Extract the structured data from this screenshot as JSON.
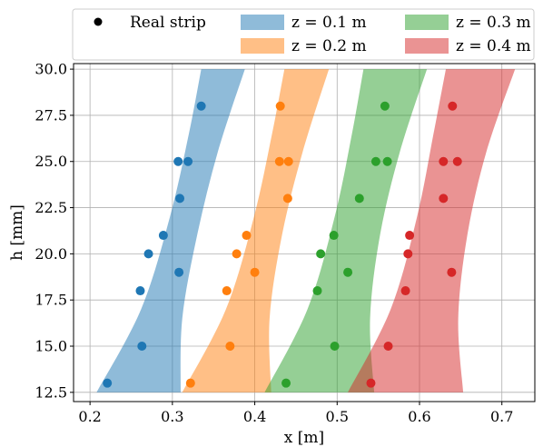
{
  "chart_data": {
    "type": "scatter",
    "title": "",
    "xlabel": "x [m]",
    "ylabel": "h [mm]",
    "xlim": [
      0.18,
      0.74
    ],
    "ylim": [
      12.0,
      30.3
    ],
    "grid": true,
    "legend_position": "top",
    "x_ticks": [
      0.2,
      0.3,
      0.4,
      0.5,
      0.6,
      0.7
    ],
    "x_tick_labels": [
      "0.2",
      "0.3",
      "0.4",
      "0.5",
      "0.6",
      "0.7"
    ],
    "y_ticks": [
      12.5,
      15.0,
      17.5,
      20.0,
      22.5,
      25.0,
      27.5,
      30.0
    ],
    "y_tick_labels": [
      "12.5",
      "15.0",
      "17.5",
      "20.0",
      "22.5",
      "25.0",
      "27.5",
      "30.0"
    ],
    "legend": {
      "marker_label": "Real strip",
      "entries": [
        "z = 0.1 m",
        "z = 0.2 m",
        "z = 0.3 m",
        "z = 0.4 m"
      ]
    },
    "bands": [
      {
        "name": "z = 0.1 m",
        "color": "#1f77b4",
        "left": [
          [
            0.208,
            12.5
          ],
          [
            0.262,
            17.0
          ],
          [
            0.297,
            22.0
          ],
          [
            0.32,
            26.5
          ],
          [
            0.335,
            30.0
          ]
        ],
        "right": [
          [
            0.31,
            12.5
          ],
          [
            0.312,
            16.5
          ],
          [
            0.33,
            21.0
          ],
          [
            0.355,
            25.5
          ],
          [
            0.388,
            30.0
          ]
        ]
      },
      {
        "name": "z = 0.2 m",
        "color": "#ff7f0e",
        "left": [
          [
            0.312,
            12.5
          ],
          [
            0.365,
            17.0
          ],
          [
            0.399,
            22.0
          ],
          [
            0.421,
            26.5
          ],
          [
            0.436,
            30.0
          ]
        ],
        "right": [
          [
            0.42,
            12.5
          ],
          [
            0.418,
            16.5
          ],
          [
            0.433,
            21.0
          ],
          [
            0.458,
            25.5
          ],
          [
            0.49,
            30.0
          ]
        ]
      },
      {
        "name": "z = 0.3 m",
        "color": "#2ca02c",
        "left": [
          [
            0.412,
            12.5
          ],
          [
            0.464,
            17.0
          ],
          [
            0.497,
            22.0
          ],
          [
            0.518,
            26.5
          ],
          [
            0.532,
            30.0
          ]
        ],
        "right": [
          [
            0.545,
            12.5
          ],
          [
            0.54,
            16.5
          ],
          [
            0.552,
            21.0
          ],
          [
            0.576,
            25.5
          ],
          [
            0.609,
            30.0
          ]
        ]
      },
      {
        "name": "z = 0.4 m",
        "color": "#d62728",
        "left": [
          [
            0.513,
            12.5
          ],
          [
            0.565,
            17.0
          ],
          [
            0.597,
            22.0
          ],
          [
            0.617,
            26.5
          ],
          [
            0.632,
            30.0
          ]
        ],
        "right": [
          [
            0.653,
            12.5
          ],
          [
            0.647,
            16.5
          ],
          [
            0.658,
            21.0
          ],
          [
            0.681,
            25.5
          ],
          [
            0.716,
            30.0
          ]
        ]
      }
    ],
    "series": [
      {
        "color": "#1f77b4",
        "points": [
          [
            0.221,
            13.0
          ],
          [
            0.263,
            15.0
          ],
          [
            0.261,
            18.0
          ],
          [
            0.308,
            19.0
          ],
          [
            0.271,
            20.0
          ],
          [
            0.289,
            21.0
          ],
          [
            0.309,
            23.0
          ],
          [
            0.307,
            25.0
          ],
          [
            0.319,
            25.0
          ],
          [
            0.335,
            28.0
          ]
        ]
      },
      {
        "color": "#ff7f0e",
        "points": [
          [
            0.322,
            13.0
          ],
          [
            0.37,
            15.0
          ],
          [
            0.366,
            18.0
          ],
          [
            0.4,
            19.0
          ],
          [
            0.378,
            20.0
          ],
          [
            0.39,
            21.0
          ],
          [
            0.44,
            23.0
          ],
          [
            0.43,
            25.0
          ],
          [
            0.441,
            25.0
          ],
          [
            0.431,
            28.0
          ]
        ]
      },
      {
        "color": "#2ca02c",
        "points": [
          [
            0.438,
            13.0
          ],
          [
            0.497,
            15.0
          ],
          [
            0.476,
            18.0
          ],
          [
            0.513,
            19.0
          ],
          [
            0.48,
            20.0
          ],
          [
            0.496,
            21.0
          ],
          [
            0.527,
            23.0
          ],
          [
            0.547,
            25.0
          ],
          [
            0.561,
            25.0
          ],
          [
            0.558,
            28.0
          ]
        ]
      },
      {
        "color": "#d62728",
        "points": [
          [
            0.541,
            13.0
          ],
          [
            0.562,
            15.0
          ],
          [
            0.583,
            18.0
          ],
          [
            0.639,
            19.0
          ],
          [
            0.586,
            20.0
          ],
          [
            0.588,
            21.0
          ],
          [
            0.629,
            23.0
          ],
          [
            0.629,
            25.0
          ],
          [
            0.646,
            25.0
          ],
          [
            0.64,
            28.0
          ]
        ]
      }
    ]
  }
}
